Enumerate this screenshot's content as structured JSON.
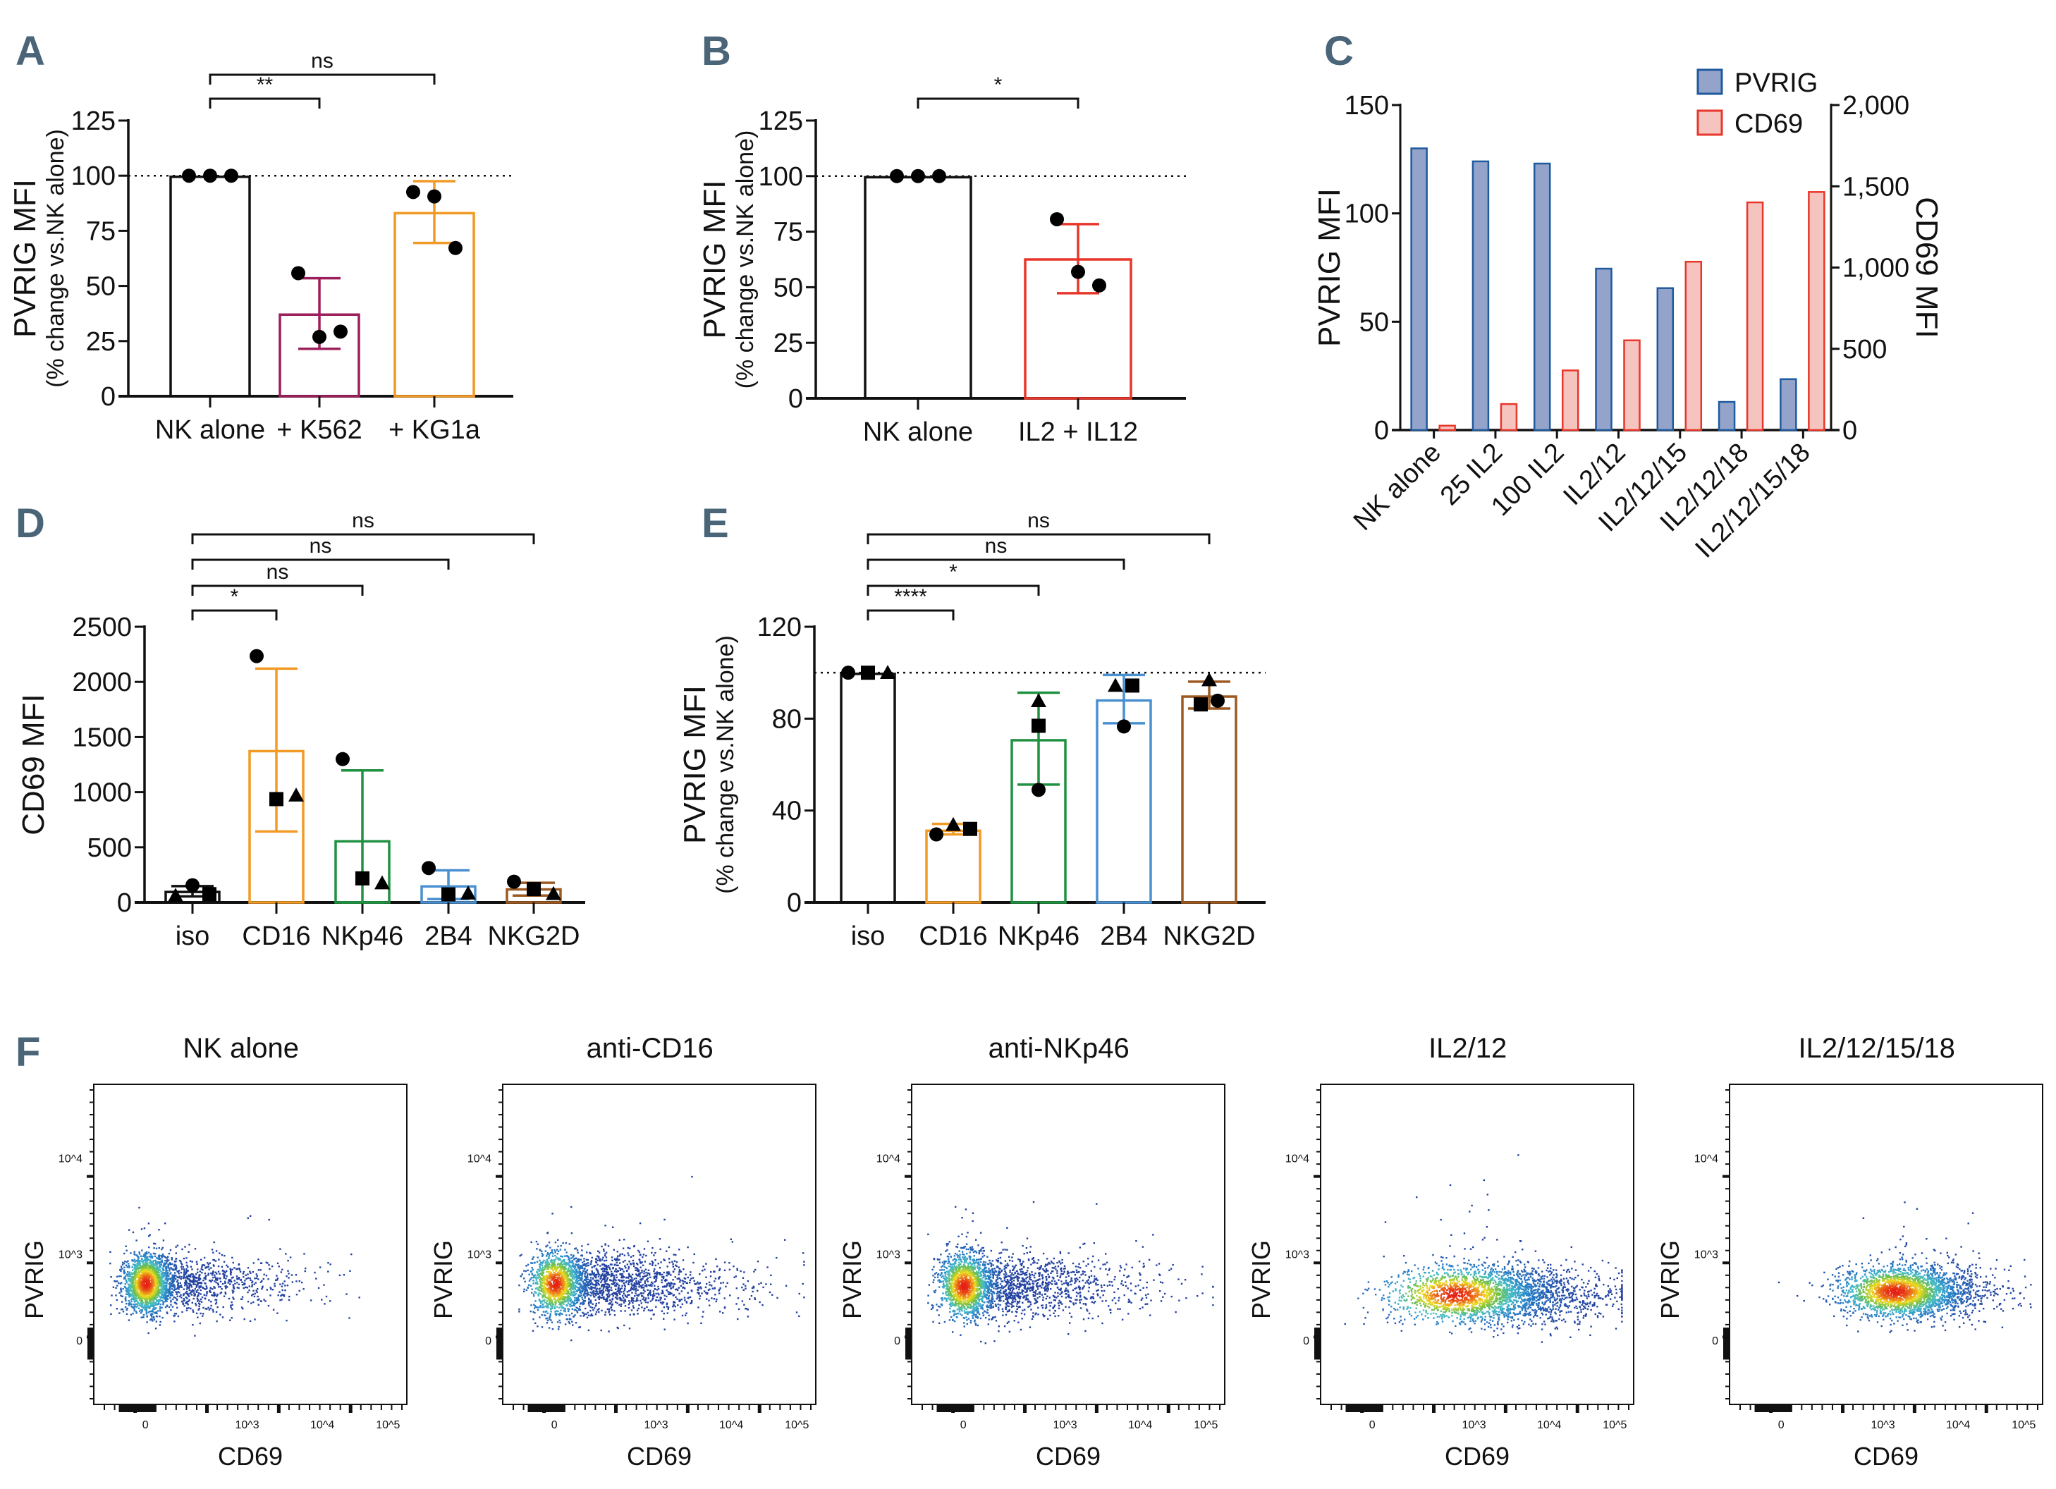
{
  "figure": {
    "panel_letters": [
      "A",
      "B",
      "C",
      "D",
      "E",
      "F"
    ],
    "colors": {
      "panel_letter": "#4a6478",
      "black": "#111111",
      "k562": "#9c1f5b",
      "kg1a": "#f29a26",
      "il2_il12": "#e8362a",
      "cd16": "#f29a26",
      "nkp46": "#1f9140",
      "b2b4": "#4a90d0",
      "nkg2d": "#9c5a22",
      "pvrig_fill": "#93a3ca",
      "pvrig_edge": "#1f5a9e",
      "cd69_fill": "#f5c4bf",
      "cd69_edge": "#e8362a"
    }
  },
  "chart_data": [
    {
      "id": "A",
      "type": "bar",
      "title": "",
      "ylabel": "PVRIG MFI",
      "ylabel_sub": "(% change vs.NK alone)",
      "ylim": [
        0,
        125
      ],
      "yticks": [
        0,
        25,
        50,
        75,
        100,
        125
      ],
      "reference_line": 100,
      "categories": [
        "NK alone",
        "+ K562",
        "+ KG1a"
      ],
      "bar_colors": [
        "#111111",
        "#9c1f5b",
        "#f29a26"
      ],
      "means": [
        99.5,
        37,
        83
      ],
      "error_low": [
        99.5,
        21.5,
        69.5
      ],
      "error_high": [
        99.5,
        53.5,
        97.5
      ],
      "points": [
        [
          100,
          100,
          100
        ],
        [
          55.8,
          26.9,
          29.3
        ],
        [
          92.6,
          90.6,
          67.2
        ]
      ],
      "point_shapes": [
        [
          "circle",
          "circle",
          "circle"
        ],
        [
          "circle",
          "circle",
          "circle"
        ],
        [
          "circle",
          "circle",
          "circle"
        ]
      ],
      "significance": [
        {
          "from": 0,
          "to": 2,
          "label": "ns"
        },
        {
          "from": 0,
          "to": 1,
          "label": "**"
        }
      ]
    },
    {
      "id": "B",
      "type": "bar",
      "title": "",
      "ylabel": "PVRIG MFI",
      "ylabel_sub": "(% change vs.NK alone)",
      "ylim": [
        0,
        125
      ],
      "yticks": [
        0,
        25,
        50,
        75,
        100,
        125
      ],
      "reference_line": 100,
      "categories": [
        "NK alone",
        "IL2 + IL12"
      ],
      "bar_colors": [
        "#111111",
        "#e8362a"
      ],
      "means": [
        99.5,
        62.5
      ],
      "error_low": [
        99.5,
        47.3
      ],
      "error_high": [
        99.5,
        78.4
      ],
      "points": [
        [
          100,
          100,
          100
        ],
        [
          80.6,
          56.9,
          50.8
        ]
      ],
      "point_shapes": [
        [
          "circle",
          "circle",
          "circle"
        ],
        [
          "circle",
          "circle",
          "circle"
        ]
      ],
      "significance": [
        {
          "from": 0,
          "to": 1,
          "label": "*"
        }
      ]
    },
    {
      "id": "C",
      "type": "bar",
      "title": "",
      "ylabel": "PVRIG MFI",
      "ylabel_right": "CD69 MFI",
      "ylim": [
        0,
        150
      ],
      "yticks": [
        0,
        50,
        100,
        150
      ],
      "ylim_right": [
        0,
        2000
      ],
      "yticks_right": [
        "0",
        "500",
        "1,000",
        "1,500",
        "2,000"
      ],
      "yticks_right_values": [
        0,
        500,
        1000,
        1500,
        2000
      ],
      "categories": [
        "NK alone",
        "25 IL2",
        "100 IL2",
        "IL2/12",
        "IL2/12/15",
        "IL2/12/18",
        "IL2/12/15/18"
      ],
      "legend": [
        "PVRIG",
        "CD69"
      ],
      "legend_position": "top-right",
      "series": [
        {
          "name": "PVRIG",
          "axis": "left",
          "values": [
            130,
            124,
            123,
            74.5,
            65.5,
            13,
            23.5
          ]
        },
        {
          "name": "CD69",
          "axis": "right",
          "values": [
            27,
            160,
            367,
            552,
            1036,
            1401,
            1465
          ]
        }
      ]
    },
    {
      "id": "D",
      "type": "bar",
      "title": "",
      "ylabel": "CD69 MFI",
      "ylim": [
        0,
        2500
      ],
      "yticks": [
        0,
        500,
        1000,
        1500,
        2000,
        2500
      ],
      "categories": [
        "iso",
        "CD16",
        "NKp46",
        "2B4",
        "NKG2D"
      ],
      "bar_colors": [
        "#111111",
        "#f29a26",
        "#1f9140",
        "#4a90d0",
        "#9c5a22"
      ],
      "means": [
        95,
        1372,
        554,
        145,
        118
      ],
      "error_low": [
        54,
        643,
        0,
        30,
        62
      ],
      "error_high": [
        148,
        2120,
        1197,
        291,
        178
      ],
      "points": [
        [
          156,
          75,
          62
        ],
        [
          2234,
          937,
          971
        ],
        [
          1300,
          218,
          175
        ],
        [
          312,
          73,
          83
        ],
        [
          188,
          121,
          78
        ]
      ],
      "point_shapes": [
        [
          "circle",
          "square",
          "triangle"
        ],
        [
          "circle",
          "square",
          "triangle"
        ],
        [
          "circle",
          "square",
          "triangle"
        ],
        [
          "circle",
          "square",
          "triangle"
        ],
        [
          "circle",
          "square",
          "triangle"
        ]
      ],
      "point_offsets": [
        [
          0,
          1,
          -1
        ],
        [
          0,
          -0.5,
          0.5
        ],
        [
          0,
          0.5,
          -0.5
        ],
        [
          0,
          -0.5,
          0.5
        ],
        [
          -0.5,
          0.5,
          -0.5
        ]
      ],
      "significance": [
        {
          "from": 0,
          "to": 4,
          "label": "ns"
        },
        {
          "from": 0,
          "to": 3,
          "label": "ns"
        },
        {
          "from": 0,
          "to": 2,
          "label": "ns"
        },
        {
          "from": 0,
          "to": 1,
          "label": "*"
        }
      ]
    },
    {
      "id": "E",
      "type": "bar",
      "title": "",
      "ylabel": "PVRIG MFI",
      "ylabel_sub": "(% change vs.NK alone)",
      "ylim": [
        0,
        120
      ],
      "yticks": [
        0,
        40,
        80,
        120
      ],
      "reference_line": 100,
      "categories": [
        "iso",
        "CD16",
        "NKp46",
        "2B4",
        "NKG2D"
      ],
      "bar_colors": [
        "#111111",
        "#f29a26",
        "#1f9140",
        "#4a90d0",
        "#9c5a22"
      ],
      "means": [
        99.5,
        31.2,
        70.6,
        87.9,
        89.6
      ],
      "error_low": [
        99.5,
        29.6,
        51.3,
        78,
        84.4
      ],
      "error_high": [
        99.5,
        34.2,
        91.3,
        99,
        96.1
      ],
      "points": [
        [
          100,
          100,
          100
        ],
        [
          29.6,
          32,
          33.8
        ],
        [
          49,
          76.9,
          87.7
        ],
        [
          76.6,
          94.4,
          94.4
        ],
        [
          87.8,
          86.2,
          96.8
        ]
      ],
      "point_shapes": [
        [
          "circle",
          "square",
          "triangle"
        ],
        [
          "circle",
          "square",
          "triangle"
        ],
        [
          "circle",
          "square",
          "triangle"
        ],
        [
          "circle",
          "square",
          "triangle"
        ],
        [
          "circle",
          "square",
          "triangle"
        ]
      ],
      "point_offsets": [
        [
          -1,
          0,
          1
        ],
        [
          -1,
          1,
          0
        ],
        [
          0,
          0,
          0
        ],
        [
          0,
          0.5,
          -0.5
        ],
        [
          0.5,
          -0.5,
          0
        ]
      ],
      "significance": [
        {
          "from": 0,
          "to": 4,
          "label": "ns"
        },
        {
          "from": 0,
          "to": 3,
          "label": "ns"
        },
        {
          "from": 0,
          "to": 2,
          "label": "*"
        },
        {
          "from": 0,
          "to": 1,
          "label": "****"
        }
      ]
    },
    {
      "id": "F",
      "type": "scatter",
      "subtype": "flow-cytometry-density",
      "xlabel": "CD69",
      "ylabel": "PVRIG",
      "xticks": [
        "0",
        "10^3",
        "10^4",
        "10^5"
      ],
      "yticks": [
        "0",
        "10^3",
        "10^4"
      ],
      "plots": [
        {
          "title": "NK alone",
          "cd69_center": 0,
          "pvrig_center": 250,
          "cd69_spread": "narrow",
          "cd69_tail": 0.35
        },
        {
          "title": "anti-CD16",
          "cd69_center": 0,
          "pvrig_center": 250,
          "cd69_spread": "wide",
          "cd69_tail": 0.6
        },
        {
          "title": "anti-NKp46",
          "cd69_center": 0,
          "pvrig_center": 220,
          "cd69_spread": "wide",
          "cd69_tail": 0.55
        },
        {
          "title": "IL2/12",
          "cd69_center": 500,
          "pvrig_center": 150,
          "cd69_spread": "broad",
          "cd69_tail": 0.9
        },
        {
          "title": "IL2/12/15/18",
          "cd69_center": 1500,
          "pvrig_center": 170,
          "cd69_spread": "shifted",
          "cd69_tail": 0.5
        }
      ]
    }
  ]
}
